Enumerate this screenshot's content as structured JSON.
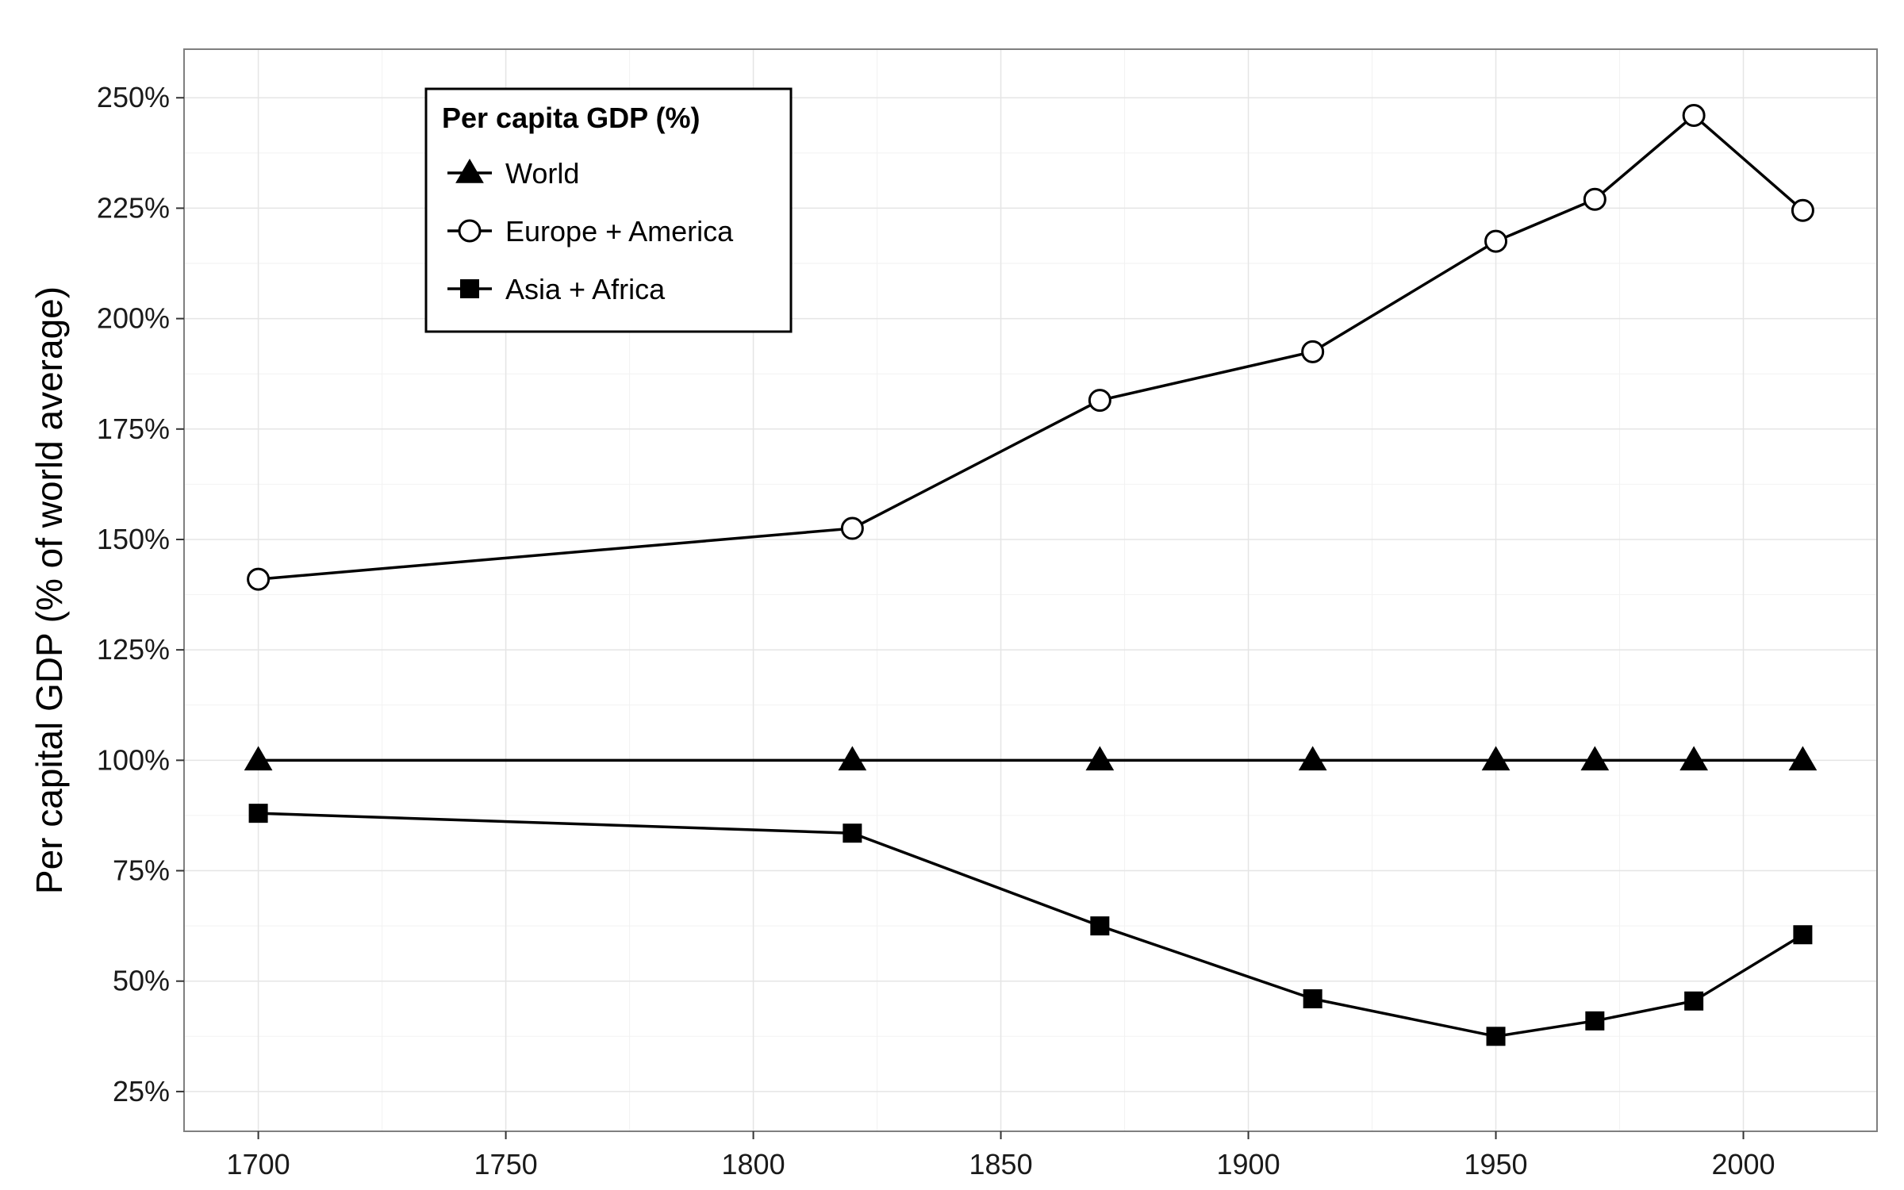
{
  "chart_data": {
    "type": "line",
    "title": "",
    "xlabel": "",
    "ylabel": "Per capital GDP (% of world average)",
    "xlim": [
      1685,
      2027
    ],
    "ylim": [
      16,
      261
    ],
    "x_ticks": [
      1700,
      1750,
      1800,
      1850,
      1900,
      1950,
      2000
    ],
    "x_tick_labels": [
      "1700",
      "1750",
      "1800",
      "1850",
      "1900",
      "1950",
      "2000"
    ],
    "y_ticks": [
      25,
      50,
      75,
      100,
      125,
      150,
      175,
      200,
      225,
      250
    ],
    "y_tick_labels": [
      "25%",
      "50%",
      "75%",
      "100%",
      "125%",
      "150%",
      "175%",
      "200%",
      "225%",
      "250%"
    ],
    "grid": true,
    "legend_position": "top-left",
    "legend_title": "Per capita GDP (%)",
    "x": [
      1700,
      1820,
      1870,
      1913,
      1950,
      1970,
      1990,
      2012
    ],
    "series": [
      {
        "name": "World",
        "marker": "triangle-filled",
        "values": [
          100,
          100,
          100,
          100,
          100,
          100,
          100,
          100
        ]
      },
      {
        "name": "Europe + America",
        "marker": "circle-open",
        "values": [
          141,
          152.5,
          181.5,
          192.5,
          217.5,
          227,
          246,
          224.5
        ]
      },
      {
        "name": "Asia + Africa",
        "marker": "square-filled",
        "values": [
          88,
          83.5,
          62.5,
          46,
          37.5,
          41,
          45.5,
          60.5
        ]
      }
    ],
    "colors": {
      "line": "#000000",
      "grid": "#e5e5e5",
      "panel_border": "#7f7f7f",
      "background": "#ffffff"
    }
  }
}
